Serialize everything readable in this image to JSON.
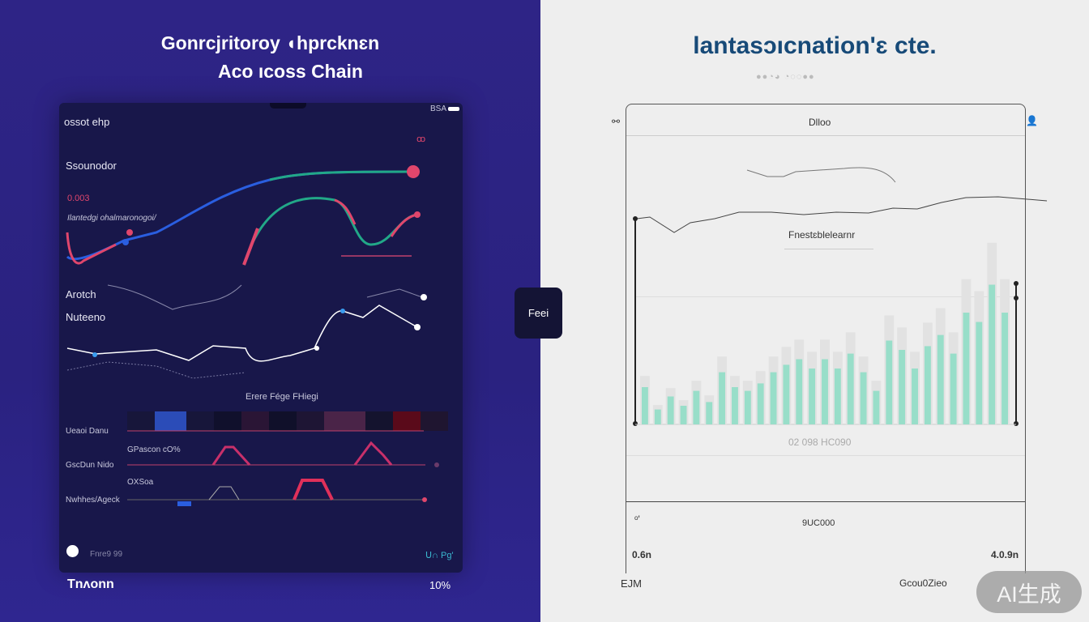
{
  "left": {
    "title_line1": "Gonrcjritoroy ◖hprcknɛn",
    "title_line2": "Aco ıcoss Chain",
    "panel": {
      "header": "ossot ehp",
      "status": "BSA",
      "badge": "ꝏ",
      "section1": "Ssounodor",
      "value1": "0.003",
      "caption1": "Ilantedgi ohalmaronogoi/",
      "label_a": "Arotch",
      "label_b": "Nuteeno",
      "heat_title": "Erere Fége FHiegi",
      "rows": [
        "Ueaoi Danu",
        "GscDun Nido",
        "Nwhhes/Ageck"
      ],
      "row_note1": "GPascon cO%",
      "row_note2": "OXSoa",
      "footer_left": "Fnre9 99",
      "footer_right": "ᑌ∩ Pg'",
      "heat_colors": [
        "#17163a",
        "#2b4cb8",
        "#17163a",
        "#10102c",
        "#2a1535",
        "#10102a",
        "#1e1534",
        "#4a2448",
        "#14132e",
        "#5a0a1a",
        "#1f1530"
      ]
    },
    "bottom_left": "Tnʌonn",
    "bottom_right": "10%"
  },
  "center_button": "Feei",
  "right": {
    "title": "lantasɔıcnation'ɛ cte.",
    "subtitle_dots": "●●◔◕ ◔◌◌●●",
    "frame_header": "Dlloo",
    "left_icon": "link-icon",
    "right_icon": "user-icon",
    "chart_label": "Fnestɛblelearnr",
    "axis_caption": "02 098 HC090",
    "bottom_center": "9UC000",
    "bottom_mark": "ᵒ'",
    "bottom_left_value": "0.6n",
    "bottom_right_value": "4.0.9n",
    "footer_left": "EJM",
    "footer_right": "Gcou0Zieo",
    "bar_color": "#7fdcc0",
    "bar_values": [
      20,
      8,
      15,
      10,
      18,
      12,
      28,
      20,
      18,
      22,
      28,
      32,
      35,
      30,
      35,
      30,
      38,
      28,
      18,
      45,
      40,
      30,
      42,
      48,
      38,
      60,
      55,
      75,
      60
    ]
  },
  "watermark": "AI生成"
}
